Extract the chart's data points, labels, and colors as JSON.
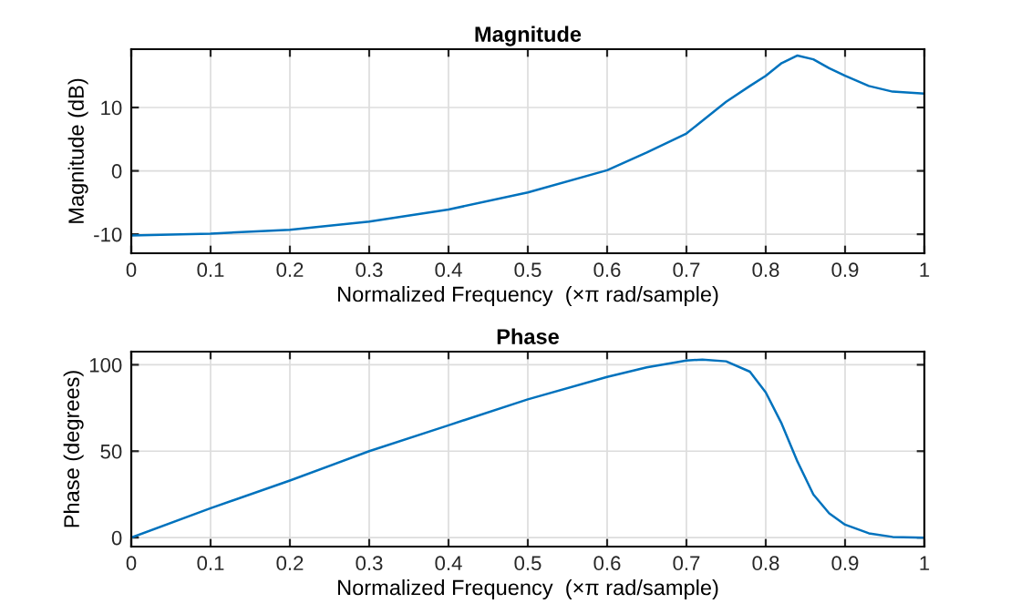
{
  "chart_data": [
    {
      "type": "line",
      "title": "Magnitude",
      "xlabel": "Normalized Frequency  (×π rad/sample)",
      "ylabel": "Magnitude (dB)",
      "grid": true,
      "xlim": [
        0,
        1
      ],
      "ylim": [
        -13,
        19.2
      ],
      "xticks": [
        0,
        0.1,
        0.2,
        0.3,
        0.4,
        0.5,
        0.6,
        0.7,
        0.8,
        0.9,
        1
      ],
      "yticks": [
        -10,
        0,
        10
      ],
      "x": [
        0,
        0.1,
        0.2,
        0.3,
        0.4,
        0.5,
        0.6,
        0.65,
        0.7,
        0.75,
        0.78,
        0.8,
        0.82,
        0.84,
        0.86,
        0.88,
        0.9,
        0.93,
        0.96,
        1.0
      ],
      "series": [
        {
          "color": "#0072bd",
          "values": [
            -10.2,
            -9.9,
            -9.3,
            -8.0,
            -6.1,
            -3.4,
            0.1,
            2.9,
            5.9,
            10.9,
            13.4,
            15.0,
            17.0,
            18.2,
            17.6,
            16.2,
            15.0,
            13.4,
            12.5,
            12.2
          ]
        }
      ]
    },
    {
      "type": "line",
      "title": "Phase",
      "xlabel": "Normalized Frequency  (×π rad/sample)",
      "ylabel": "Phase (degrees)",
      "grid": true,
      "xlim": [
        0,
        1
      ],
      "ylim": [
        -5.2,
        107.6
      ],
      "xticks": [
        0,
        0.1,
        0.2,
        0.3,
        0.4,
        0.5,
        0.6,
        0.7,
        0.8,
        0.9,
        1
      ],
      "yticks": [
        0,
        50,
        100
      ],
      "x": [
        0,
        0.1,
        0.2,
        0.3,
        0.4,
        0.5,
        0.6,
        0.65,
        0.7,
        0.72,
        0.75,
        0.78,
        0.8,
        0.82,
        0.84,
        0.86,
        0.88,
        0.9,
        0.93,
        0.96,
        1.0
      ],
      "series": [
        {
          "color": "#0072bd",
          "values": [
            0,
            17,
            33,
            50,
            65,
            80,
            93,
            98.5,
            102.5,
            103,
            102,
            96,
            84,
            66,
            44,
            25,
            14,
            7.5,
            2.5,
            0.4,
            0
          ]
        }
      ]
    }
  ]
}
